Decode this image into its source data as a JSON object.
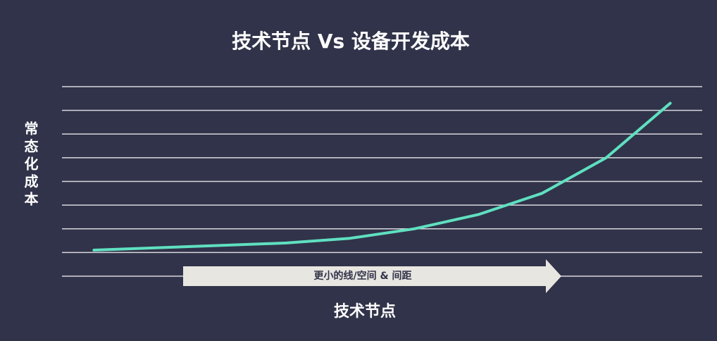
{
  "chart_data": {
    "type": "line",
    "title": "技术节点 Vs 设备开发成本",
    "x_label": "技术节点",
    "y_label": "常态化成本",
    "annotation": "更小的线/空间 & 间距",
    "categories": [
      null,
      null,
      null,
      null,
      null,
      null,
      null,
      null,
      null,
      null
    ],
    "values": [
      1.1,
      1.2,
      1.3,
      1.4,
      1.6,
      2.0,
      2.6,
      3.5,
      5.0,
      7.3
    ],
    "color": "#5fe0c0",
    "ylim": [
      0,
      8
    ],
    "yticks": [
      0,
      1,
      2,
      3,
      4,
      5,
      6,
      7,
      8
    ],
    "grid": true
  }
}
